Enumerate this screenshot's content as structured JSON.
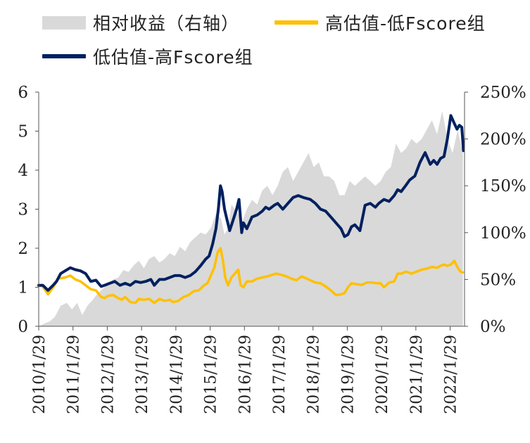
{
  "chart_data": {
    "type": "line",
    "legend": [
      {
        "key": "rel",
        "label": "相对收益（右轴）",
        "style": "area",
        "color": "#d9d9d9"
      },
      {
        "key": "high",
        "label": "高估值-低Fscore组",
        "style": "line",
        "color": "#ffc000"
      },
      {
        "key": "low",
        "label": "低估值-高Fscore组",
        "style": "line",
        "color": "#002060"
      }
    ],
    "x_labels": [
      "2010/1/29",
      "2011/1/29",
      "2012/1/29",
      "2013/1/29",
      "2014/1/29",
      "2015/1/29",
      "2016/1/29",
      "2017/1/29",
      "2018/1/29",
      "2019/1/29",
      "2020/1/29",
      "2021/1/29",
      "2022/1/29"
    ],
    "xlim": [
      "2010-01-29",
      "2022-06-30"
    ],
    "ylim_left": [
      0,
      6
    ],
    "yticks_left": [
      "0",
      "1",
      "2",
      "3",
      "4",
      "5",
      "6"
    ],
    "ylim_right": [
      0,
      2.5
    ],
    "yticks_right": [
      "0%",
      "50%",
      "100%",
      "150%",
      "200%",
      "250%"
    ],
    "series": [
      {
        "key": "high",
        "name": "高估值-低Fscore组",
        "color": "#ffc000",
        "x": [
          2010.08,
          2010.2,
          2010.35,
          2010.5,
          2010.65,
          2010.85,
          2011.0,
          2011.15,
          2011.3,
          2011.45,
          2011.6,
          2011.75,
          2011.9,
          2012.0,
          2012.1,
          2012.25,
          2012.4,
          2012.5,
          2012.6,
          2012.75,
          2012.9,
          2013.0,
          2013.15,
          2013.3,
          2013.45,
          2013.6,
          2013.75,
          2013.9,
          2014.0,
          2014.15,
          2014.3,
          2014.45,
          2014.6,
          2014.75,
          2014.9,
          2015.0,
          2015.1,
          2015.2,
          2015.3,
          2015.38,
          2015.45,
          2015.52,
          2015.6,
          2015.7,
          2015.8,
          2015.9,
          2015.97,
          2016.05,
          2016.15,
          2016.3,
          2016.45,
          2016.6,
          2016.75,
          2016.9,
          2017.0,
          2017.15,
          2017.3,
          2017.45,
          2017.6,
          2017.75,
          2017.9,
          2018.0,
          2018.15,
          2018.3,
          2018.45,
          2018.6,
          2018.75,
          2018.9,
          2019.0,
          2019.1,
          2019.2,
          2019.35,
          2019.5,
          2019.65,
          2019.8,
          2019.95,
          2020.05,
          2020.15,
          2020.3,
          2020.45,
          2020.55,
          2020.65,
          2020.8,
          2020.95,
          2021.1,
          2021.25,
          2021.4,
          2021.55,
          2021.7,
          2021.8,
          2021.9,
          2022.0,
          2022.1,
          2022.2,
          2022.3,
          2022.38,
          2022.45
        ],
        "y": [
          1.05,
          1.02,
          0.82,
          1.0,
          1.22,
          1.25,
          1.3,
          1.2,
          1.15,
          1.05,
          0.95,
          0.92,
          0.75,
          0.72,
          0.78,
          0.8,
          0.72,
          0.68,
          0.75,
          0.62,
          0.6,
          0.7,
          0.68,
          0.7,
          0.6,
          0.7,
          0.65,
          0.68,
          0.62,
          0.65,
          0.75,
          0.8,
          0.9,
          0.92,
          1.05,
          1.1,
          1.3,
          1.5,
          1.9,
          2.0,
          1.7,
          1.25,
          1.05,
          1.25,
          1.35,
          1.45,
          1.05,
          1.0,
          1.15,
          1.15,
          1.22,
          1.25,
          1.28,
          1.32,
          1.35,
          1.32,
          1.28,
          1.22,
          1.18,
          1.28,
          1.22,
          1.18,
          1.12,
          1.1,
          1.02,
          0.92,
          0.8,
          0.82,
          0.85,
          1.0,
          1.1,
          1.08,
          1.06,
          1.12,
          1.12,
          1.1,
          1.1,
          1.0,
          1.12,
          1.15,
          1.35,
          1.35,
          1.4,
          1.35,
          1.4,
          1.45,
          1.48,
          1.52,
          1.5,
          1.55,
          1.58,
          1.55,
          1.58,
          1.68,
          1.5,
          1.4,
          1.38
        ]
      },
      {
        "key": "low",
        "name": "低估值-高Fscore组",
        "color": "#002060",
        "x": [
          2010.08,
          2010.2,
          2010.35,
          2010.5,
          2010.6,
          2010.72,
          2010.85,
          2011.0,
          2011.15,
          2011.3,
          2011.45,
          2011.6,
          2011.75,
          2011.9,
          2012.0,
          2012.15,
          2012.3,
          2012.45,
          2012.6,
          2012.75,
          2012.9,
          2013.05,
          2013.2,
          2013.35,
          2013.45,
          2013.6,
          2013.75,
          2013.9,
          2014.05,
          2014.2,
          2014.35,
          2014.5,
          2014.65,
          2014.8,
          2014.95,
          2015.05,
          2015.15,
          2015.25,
          2015.32,
          2015.38,
          2015.43,
          2015.5,
          2015.58,
          2015.65,
          2015.75,
          2015.85,
          2015.92,
          2016.0,
          2016.05,
          2016.15,
          2016.3,
          2016.45,
          2016.6,
          2016.7,
          2016.8,
          2016.95,
          2017.05,
          2017.2,
          2017.35,
          2017.5,
          2017.65,
          2017.8,
          2018.0,
          2018.15,
          2018.3,
          2018.45,
          2018.6,
          2018.75,
          2018.9,
          2019.0,
          2019.1,
          2019.2,
          2019.3,
          2019.45,
          2019.6,
          2019.75,
          2019.9,
          2020.0,
          2020.15,
          2020.3,
          2020.45,
          2020.55,
          2020.65,
          2020.78,
          2020.9,
          2021.05,
          2021.2,
          2021.35,
          2021.5,
          2021.6,
          2021.7,
          2021.8,
          2021.9,
          2022.0,
          2022.1,
          2022.2,
          2022.28,
          2022.35,
          2022.42,
          2022.47
        ],
        "y": [
          1.05,
          1.05,
          0.92,
          1.05,
          1.15,
          1.35,
          1.42,
          1.5,
          1.45,
          1.42,
          1.35,
          1.15,
          1.18,
          1.02,
          1.05,
          1.1,
          1.15,
          1.05,
          1.1,
          1.05,
          1.15,
          1.12,
          1.15,
          1.2,
          1.05,
          1.2,
          1.2,
          1.25,
          1.3,
          1.3,
          1.25,
          1.3,
          1.4,
          1.55,
          1.72,
          1.8,
          2.1,
          2.5,
          3.0,
          3.6,
          3.45,
          3.0,
          2.7,
          2.45,
          2.72,
          3.0,
          3.25,
          2.4,
          2.65,
          2.5,
          2.8,
          2.85,
          2.95,
          3.05,
          3.0,
          3.1,
          3.15,
          3.0,
          3.15,
          3.3,
          3.35,
          3.3,
          3.25,
          3.15,
          3.0,
          2.95,
          2.8,
          2.65,
          2.5,
          2.3,
          2.35,
          2.55,
          2.6,
          2.45,
          3.1,
          3.15,
          3.05,
          3.15,
          3.25,
          3.2,
          3.35,
          3.5,
          3.45,
          3.6,
          3.75,
          3.85,
          4.2,
          4.45,
          4.15,
          4.25,
          4.15,
          4.3,
          4.35,
          4.8,
          5.4,
          5.2,
          5.05,
          5.15,
          5.1,
          4.5
        ]
      }
    ],
    "area": {
      "key": "rel",
      "name": "相对收益（右轴）",
      "color": "#d9d9d9",
      "x": [
        2010.08,
        2010.25,
        2010.4,
        2010.55,
        2010.72,
        2010.9,
        2011.05,
        2011.2,
        2011.35,
        2011.5,
        2011.65,
        2011.8,
        2011.95,
        2012.1,
        2012.25,
        2012.4,
        2012.55,
        2012.7,
        2012.85,
        2013.0,
        2013.15,
        2013.3,
        2013.45,
        2013.6,
        2013.75,
        2013.9,
        2014.05,
        2014.2,
        2014.35,
        2014.5,
        2014.65,
        2014.8,
        2014.95,
        2015.1,
        2015.25,
        2015.4,
        2015.5,
        2015.6,
        2015.7,
        2015.8,
        2015.9,
        2016.0,
        2016.15,
        2016.3,
        2016.45,
        2016.6,
        2016.75,
        2016.9,
        2017.05,
        2017.2,
        2017.35,
        2017.5,
        2017.65,
        2017.8,
        2017.95,
        2018.1,
        2018.25,
        2018.4,
        2018.55,
        2018.7,
        2018.85,
        2019.0,
        2019.15,
        2019.3,
        2019.45,
        2019.6,
        2019.75,
        2019.9,
        2020.05,
        2020.2,
        2020.35,
        2020.5,
        2020.65,
        2020.8,
        2020.95,
        2021.1,
        2021.25,
        2021.4,
        2021.55,
        2021.7,
        2021.85,
        2022.0,
        2022.15,
        2022.3,
        2022.45
      ],
      "y": [
        0.0,
        0.03,
        0.05,
        0.1,
        0.22,
        0.25,
        0.18,
        0.25,
        0.12,
        0.22,
        0.28,
        0.35,
        0.4,
        0.45,
        0.5,
        0.52,
        0.6,
        0.58,
        0.65,
        0.7,
        0.62,
        0.72,
        0.75,
        0.68,
        0.72,
        0.78,
        0.75,
        0.85,
        0.8,
        0.9,
        0.95,
        1.0,
        0.98,
        1.05,
        1.2,
        1.15,
        0.98,
        1.05,
        1.3,
        1.25,
        1.2,
        1.1,
        1.25,
        1.35,
        1.3,
        1.45,
        1.5,
        1.4,
        1.5,
        1.65,
        1.7,
        1.55,
        1.65,
        1.75,
        1.85,
        1.7,
        1.75,
        1.6,
        1.6,
        1.55,
        1.4,
        1.4,
        1.55,
        1.5,
        1.55,
        1.6,
        1.55,
        1.5,
        1.55,
        1.65,
        1.7,
        1.95,
        1.85,
        1.9,
        2.0,
        1.95,
        2.0,
        2.1,
        2.2,
        2.05,
        2.3,
        2.0,
        1.85,
        2.1,
        1.85
      ]
    }
  }
}
